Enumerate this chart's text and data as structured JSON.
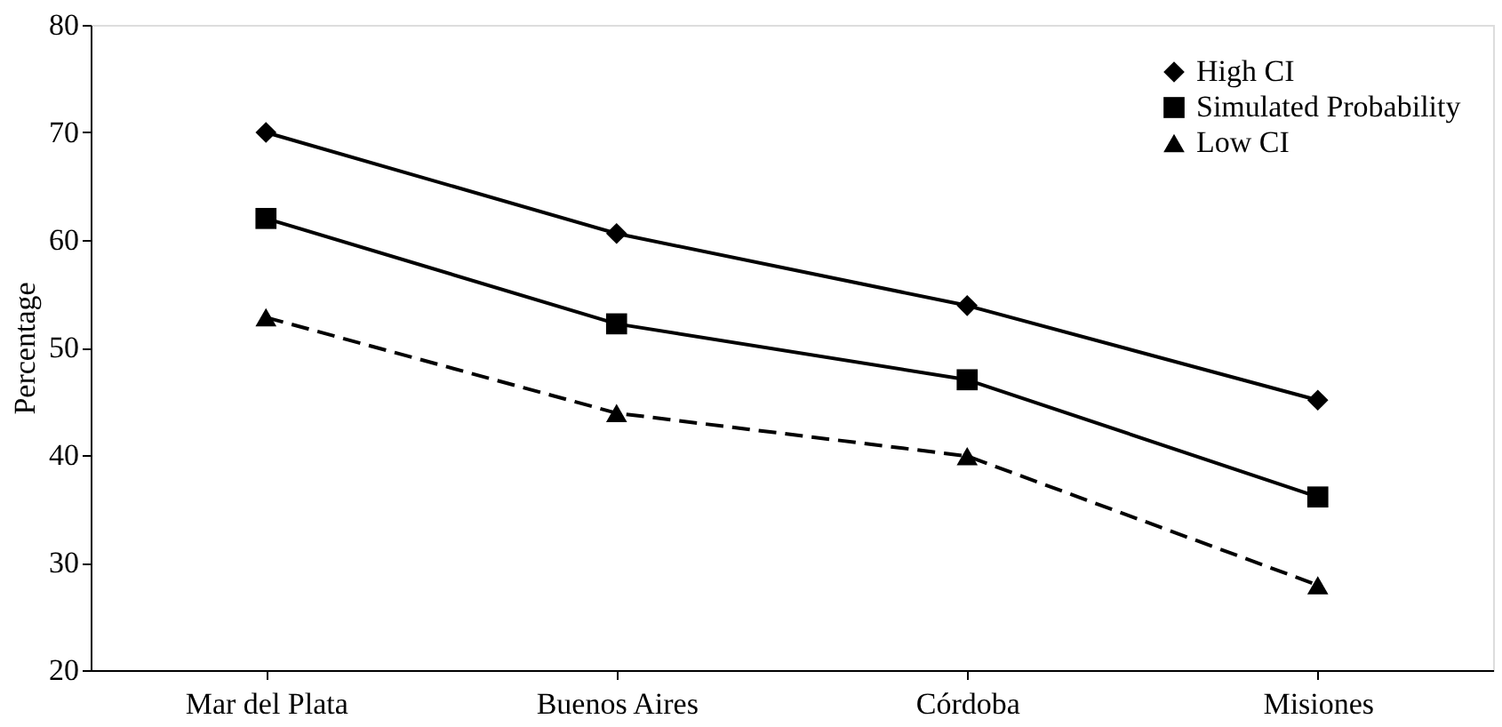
{
  "chart_data": {
    "type": "line",
    "ylabel": "Percentage",
    "categories": [
      "Mar del Plata",
      "Buenos Aires",
      "Córdoba",
      "Misiones"
    ],
    "series": [
      {
        "name": "High CI",
        "color": "#000000",
        "marker": "diamond",
        "line_style": "solid",
        "values": [
          70,
          60.6,
          53.9,
          45.1
        ]
      },
      {
        "name": "Simulated Probability",
        "color": "#000000",
        "marker": "square",
        "line_style": "solid",
        "values": [
          62,
          52.2,
          47,
          36.1
        ]
      },
      {
        "name": "Low CI",
        "color": "#000000",
        "marker": "triangle",
        "line_style": "dashed",
        "values": [
          52.8,
          43.9,
          39.9,
          27.9
        ]
      }
    ],
    "ylim": [
      20,
      80
    ],
    "yticks": [
      20,
      30,
      40,
      50,
      60,
      70,
      80
    ],
    "grid": false,
    "legend": "top right"
  }
}
